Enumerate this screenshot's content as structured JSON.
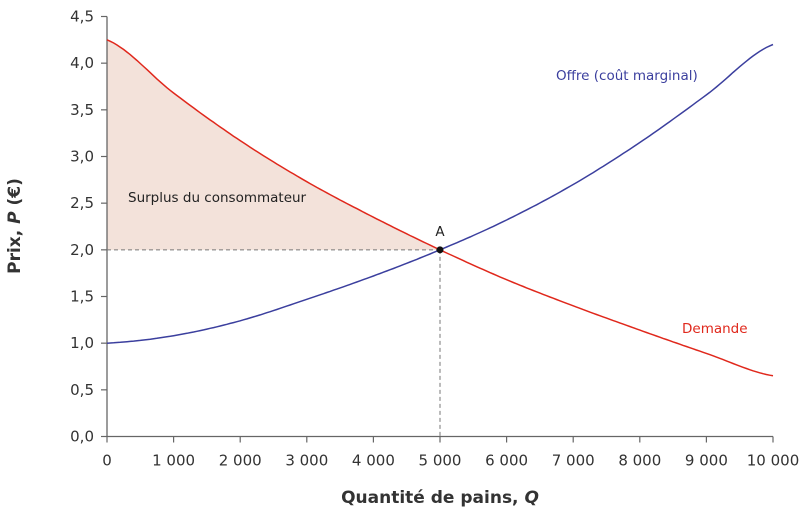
{
  "chart_data": {
    "type": "line",
    "xlabel_main": "Quantité de pains, ",
    "xlabel_var": "Q",
    "ylabel_main": "Prix, ",
    "ylabel_var": "P",
    "ylabel_unit": " (€)",
    "xlim": [
      0,
      10000
    ],
    "ylim": [
      0,
      4.5
    ],
    "grid": false,
    "x_ticks": [
      0,
      1000,
      2000,
      3000,
      4000,
      5000,
      6000,
      7000,
      8000,
      9000,
      10000
    ],
    "x_tick_labels": [
      "0",
      "1 000",
      "2 000",
      "3 000",
      "4 000",
      "5 000",
      "6 000",
      "7 000",
      "8 000",
      "9 000",
      "10 000"
    ],
    "y_ticks": [
      0,
      0.5,
      1,
      1.5,
      2,
      2.5,
      3,
      3.5,
      4,
      4.5
    ],
    "y_tick_labels": [
      "0,0",
      "0,5",
      "1,0",
      "1,5",
      "2,0",
      "2,5",
      "3,0",
      "3,5",
      "4,0",
      "4,5"
    ],
    "x": [
      0,
      1000,
      2000,
      3000,
      4000,
      5000,
      6000,
      7000,
      8000,
      9000,
      10000
    ],
    "series": [
      {
        "name": "Offre (coût marginal)",
        "color": "#3b3f9e",
        "values": [
          1.0,
          1.08,
          1.24,
          1.47,
          1.72,
          2.0,
          2.32,
          2.7,
          3.15,
          3.66,
          4.2
        ]
      },
      {
        "name": "Demande",
        "color": "#e0281c",
        "values": [
          4.25,
          3.68,
          3.17,
          2.73,
          2.35,
          2.0,
          1.68,
          1.4,
          1.14,
          0.89,
          0.65
        ]
      }
    ],
    "equilibrium": {
      "label": "A",
      "x": 5000,
      "y": 2.0
    },
    "shaded_area": {
      "label": "Surplus du consommateur",
      "color": "#f3e2da"
    }
  }
}
